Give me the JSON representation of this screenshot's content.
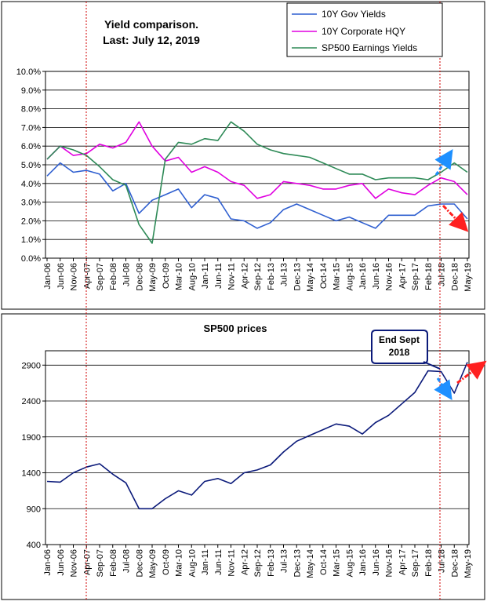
{
  "colors": {
    "gov": "#2f5fd0",
    "corp": "#e000e0",
    "sp_ey": "#2e8a57",
    "sp_price": "#0b1a7a",
    "marker": "#d00000",
    "arrow_blue": "#1e90ff",
    "arrow_red": "#ff2020"
  },
  "top_chart": {
    "title_line1": "Yield comparison.",
    "title_line2": "Last: July 12, 2019",
    "legend": [
      "10Y Gov Yields",
      "10Y Corporate HQY",
      "SP500 Earnings Yields"
    ],
    "y_ticks": [
      "0.0%",
      "1.0%",
      "2.0%",
      "3.0%",
      "4.0%",
      "5.0%",
      "6.0%",
      "7.0%",
      "8.0%",
      "9.0%",
      "10.0%"
    ],
    "x_ticks": [
      "Jan-06",
      "Jun-06",
      "Nov-06",
      "Apr-07",
      "Sep-07",
      "Feb-08",
      "Jul-08",
      "Dec-08",
      "May-09",
      "Oct-09",
      "Mar-10",
      "Aug-10",
      "Jan-11",
      "Jun-11",
      "Nov-11",
      "Apr-12",
      "Sep-12",
      "Feb-13",
      "Jul-13",
      "Dec-13",
      "May-14",
      "Oct-14",
      "Mar-15",
      "Aug-15",
      "Jan-16",
      "Jun-16",
      "Nov-16",
      "Apr-17",
      "Sep-17",
      "Feb-18",
      "Jul-18",
      "Dec-18",
      "May-19"
    ]
  },
  "bottom_chart": {
    "title": "SP500 prices",
    "callout_line1": "End Sept",
    "callout_line2": "2018",
    "y_ticks": [
      "400",
      "900",
      "1400",
      "1900",
      "2400",
      "2900"
    ],
    "x_ticks": [
      "Jan-06",
      "Jun-06",
      "Nov-06",
      "Apr-07",
      "Sep-07",
      "Feb-08",
      "Jul-08",
      "Dec-08",
      "May-09",
      "Oct-09",
      "Mar-10",
      "Aug-10",
      "Jan-11",
      "Jun-11",
      "Nov-11",
      "Apr-12",
      "Sep-12",
      "Feb-13",
      "Jul-13",
      "Dec-13",
      "May-14",
      "Oct-14",
      "Mar-15",
      "Aug-15",
      "Jan-16",
      "Jun-16",
      "Nov-16",
      "Apr-17",
      "Sep-17",
      "Feb-18",
      "Jul-18",
      "Dec-18",
      "May-19"
    ]
  },
  "chart_data": [
    {
      "type": "line",
      "title": "Yield comparison.",
      "subtitle": "Last: July 12, 2019",
      "ylim": [
        0,
        10
      ],
      "x": [
        "Jan-06",
        "Jun-06",
        "Nov-06",
        "Apr-07",
        "Sep-07",
        "Feb-08",
        "Jul-08",
        "Dec-08",
        "May-09",
        "Oct-09",
        "Mar-10",
        "Aug-10",
        "Jan-11",
        "Jun-11",
        "Nov-11",
        "Apr-12",
        "Sep-12",
        "Feb-13",
        "Jul-13",
        "Dec-13",
        "May-14",
        "Oct-14",
        "Mar-15",
        "Aug-15",
        "Jan-16",
        "Jun-16",
        "Nov-16",
        "Apr-17",
        "Sep-17",
        "Feb-18",
        "Jul-18",
        "Dec-18",
        "May-19"
      ],
      "legend_position": "top-right",
      "grid": true,
      "series": [
        {
          "name": "10Y Gov Yields",
          "values": [
            4.4,
            5.1,
            4.6,
            4.7,
            4.5,
            3.6,
            4.0,
            2.4,
            3.1,
            3.4,
            3.7,
            2.7,
            3.4,
            3.2,
            2.1,
            2.0,
            1.6,
            1.9,
            2.6,
            2.9,
            2.6,
            2.3,
            2.0,
            2.2,
            1.9,
            1.6,
            2.3,
            2.3,
            2.3,
            2.8,
            2.9,
            2.9,
            2.1
          ]
        },
        {
          "name": "10Y Corporate HQY",
          "values": [
            5.3,
            6.0,
            5.5,
            5.6,
            6.1,
            5.9,
            6.2,
            7.3,
            6.0,
            5.2,
            5.4,
            4.6,
            4.9,
            4.6,
            4.1,
            3.9,
            3.2,
            3.4,
            4.1,
            4.0,
            3.9,
            3.7,
            3.7,
            3.9,
            4.0,
            3.2,
            3.7,
            3.5,
            3.4,
            3.9,
            4.3,
            4.1,
            3.4
          ]
        },
        {
          "name": "SP500 Earnings Yields",
          "values": [
            5.3,
            6.0,
            5.8,
            5.5,
            4.9,
            4.2,
            3.9,
            1.8,
            0.8,
            5.3,
            6.2,
            6.1,
            6.4,
            6.3,
            7.3,
            6.8,
            6.1,
            5.8,
            5.6,
            5.5,
            5.4,
            5.1,
            4.8,
            4.5,
            4.5,
            4.2,
            4.3,
            4.3,
            4.3,
            4.2,
            4.6,
            5.1,
            4.6
          ]
        }
      ]
    },
    {
      "type": "line",
      "title": "SP500 prices",
      "ylim": [
        400,
        3100
      ],
      "x": [
        "Jan-06",
        "Jun-06",
        "Nov-06",
        "Apr-07",
        "Sep-07",
        "Feb-08",
        "Jul-08",
        "Dec-08",
        "May-09",
        "Oct-09",
        "Mar-10",
        "Aug-10",
        "Jan-11",
        "Jun-11",
        "Nov-11",
        "Apr-12",
        "Sep-12",
        "Feb-13",
        "Jul-13",
        "Dec-13",
        "May-14",
        "Oct-14",
        "Mar-15",
        "Aug-15",
        "Jan-16",
        "Jun-16",
        "Nov-16",
        "Apr-17",
        "Sep-17",
        "Feb-18",
        "Jul-18",
        "Dec-18",
        "May-19"
      ],
      "grid": true,
      "series": [
        {
          "values": [
            1280,
            1270,
            1400,
            1480,
            1526,
            1380,
            1260,
            900,
            900,
            1040,
            1150,
            1090,
            1280,
            1320,
            1250,
            1400,
            1440,
            1510,
            1690,
            1840,
            1920,
            2000,
            2080,
            2050,
            1940,
            2100,
            2200,
            2360,
            2520,
            2820,
            2810,
            2510,
            2940
          ]
        }
      ]
    }
  ]
}
